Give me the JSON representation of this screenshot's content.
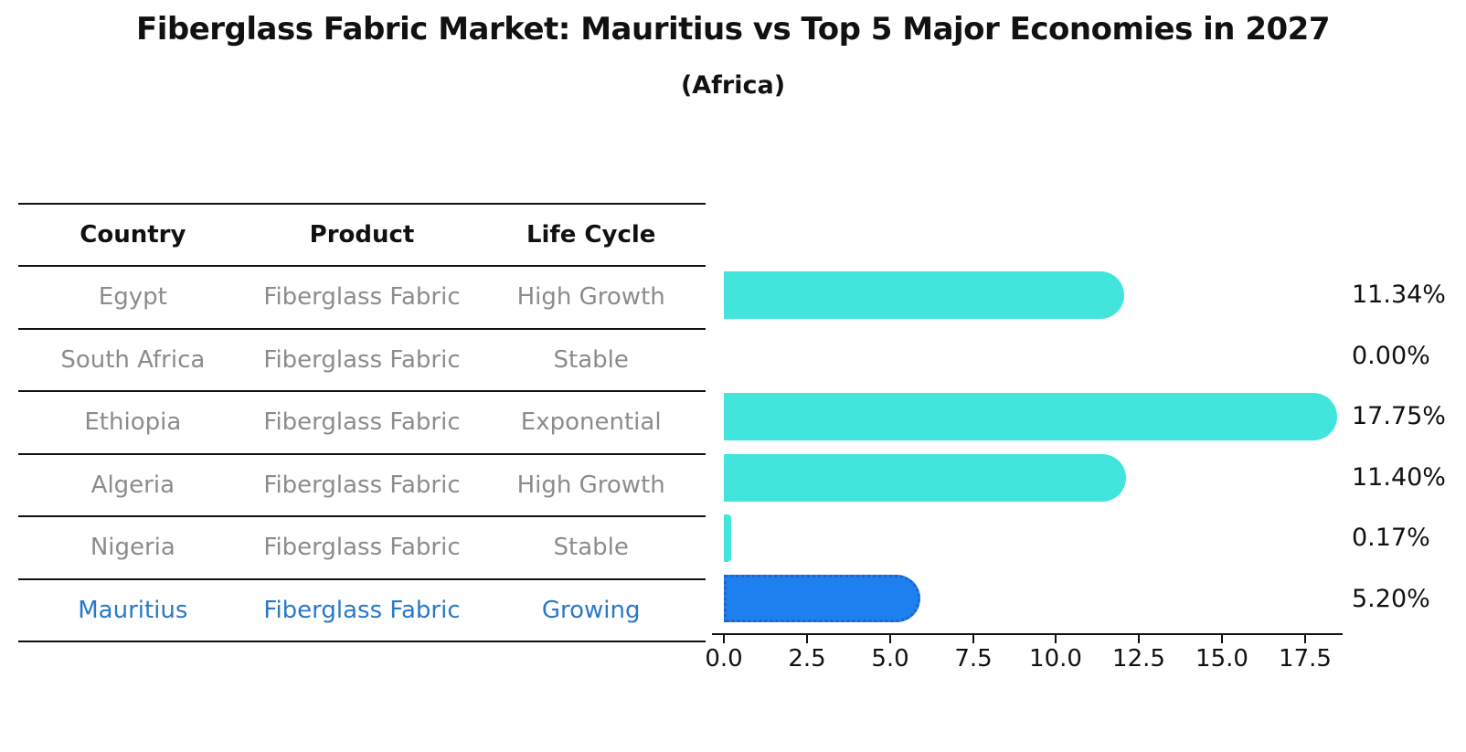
{
  "title": "Fiberglass Fabric Market: Mauritius vs Top 5 Major Economies in 2027",
  "subtitle": "(Africa)",
  "table": {
    "headers": [
      "Country",
      "Product",
      "Life Cycle"
    ],
    "rows": [
      {
        "country": "Egypt",
        "product": "Fiberglass Fabric",
        "life_cycle": "High Growth",
        "highlight": false
      },
      {
        "country": "South Africa",
        "product": "Fiberglass Fabric",
        "life_cycle": "Stable",
        "highlight": false
      },
      {
        "country": "Ethiopia",
        "product": "Fiberglass Fabric",
        "life_cycle": "Exponential",
        "highlight": false
      },
      {
        "country": "Algeria",
        "product": "Fiberglass Fabric",
        "life_cycle": "High Growth",
        "highlight": false
      },
      {
        "country": "Nigeria",
        "product": "Fiberglass Fabric",
        "life_cycle": "Stable",
        "highlight": false
      },
      {
        "country": "Mauritius",
        "product": "Fiberglass Fabric",
        "life_cycle": "Growing",
        "highlight": true
      }
    ]
  },
  "chart_data": {
    "type": "bar",
    "orientation": "horizontal",
    "title": "Fiberglass Fabric Market: Mauritius vs Top 5 Major Economies in 2027",
    "subtitle": "(Africa)",
    "categories": [
      "Egypt",
      "South Africa",
      "Ethiopia",
      "Algeria",
      "Nigeria",
      "Mauritius"
    ],
    "values": [
      11.34,
      0.0,
      17.75,
      11.4,
      0.17,
      5.2
    ],
    "value_labels": [
      "11.34%",
      "0.00%",
      "17.75%",
      "11.40%",
      "0.17%",
      "5.20%"
    ],
    "unit": "percent",
    "x_ticks": [
      "0.0",
      "2.5",
      "5.0",
      "7.5",
      "10.0",
      "12.5",
      "15.0",
      "17.5"
    ],
    "xlim": [
      0,
      18.6
    ],
    "grid": false,
    "legend": "none",
    "highlight_index": 5,
    "colors": {
      "bar": "#41e5dc",
      "highlight_bar": "#1e80ee",
      "highlight_bar_border": "#1b66c8",
      "highlight_text": "#2879c8",
      "muted_text": "#8c8c8c",
      "axis": "#111111"
    }
  }
}
